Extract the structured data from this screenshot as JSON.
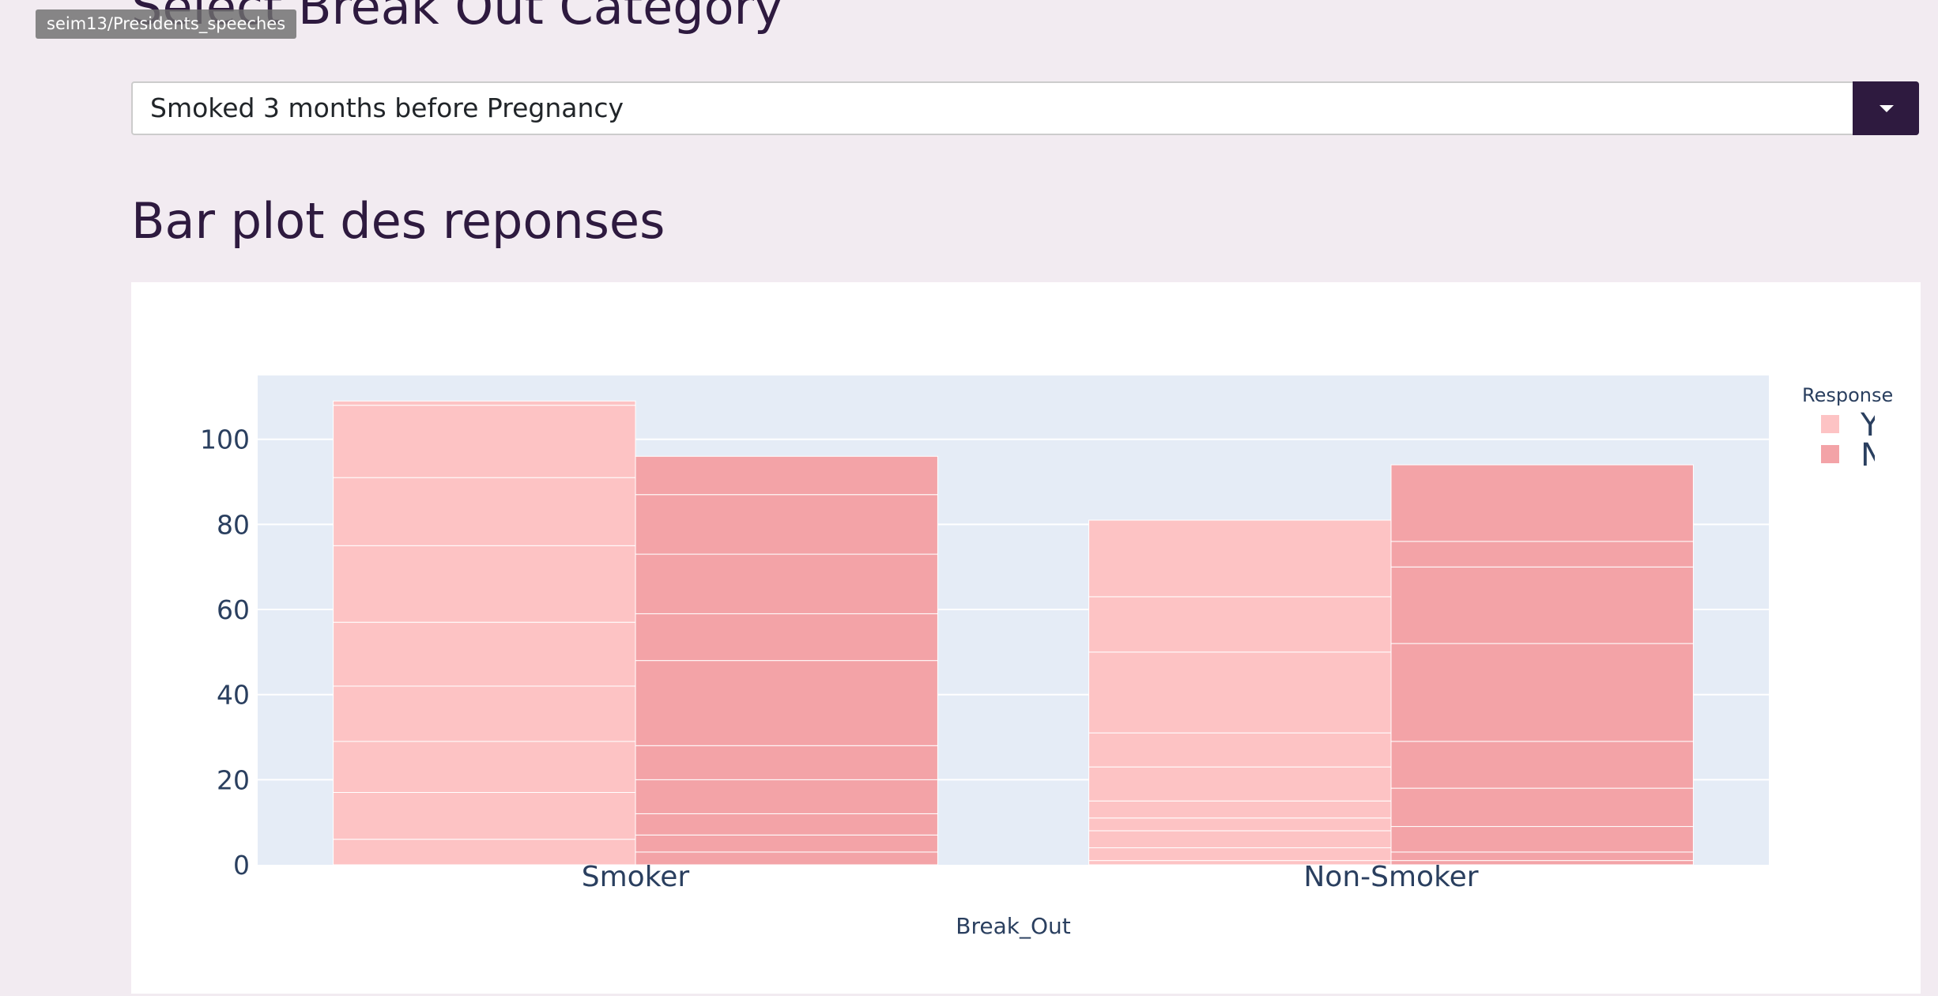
{
  "tooltip": {
    "text": "seim13/Presidents_speeches"
  },
  "header": {
    "heading": "Select Break Out Category"
  },
  "dropdown": {
    "value": "Smoked 3 months before Pregnancy",
    "icon": "caret-down-icon"
  },
  "section": {
    "title": "Bar plot des reponses"
  },
  "colors": {
    "page_bg": "#f2ebf1",
    "accent": "#2e1a3f",
    "plot_bg": "#e5ecf6",
    "yes": "#fdc3c4",
    "no": "#f3a3a7",
    "axis_text": "#2a3f5f"
  },
  "chart_data": {
    "type": "bar",
    "barmode": "group",
    "categories": [
      "Smoker",
      "Non-Smoker"
    ],
    "series": [
      {
        "name": "YES",
        "values": [
          109,
          81
        ],
        "segments": [
          [
            6,
            11,
            12,
            13,
            15,
            18,
            16,
            17,
            1
          ],
          [
            1,
            3,
            4,
            3,
            4,
            8,
            8,
            19,
            13,
            18
          ]
        ]
      },
      {
        "name": "NO",
        "values": [
          96,
          94
        ],
        "segments": [
          [
            3,
            4,
            5,
            8,
            8,
            20,
            11,
            14,
            14,
            9
          ],
          [
            1,
            2,
            6,
            9,
            11,
            23,
            18,
            6,
            18
          ]
        ]
      }
    ],
    "xlabel": "Break_Out",
    "ylabel": "",
    "yticks": [
      0,
      20,
      40,
      60,
      80,
      100
    ],
    "ylim": [
      0,
      115
    ],
    "legend_title": "Response",
    "legend_position": "top-right",
    "legend_labels_visible": [
      "YES",
      "NO"
    ],
    "grid": true
  }
}
